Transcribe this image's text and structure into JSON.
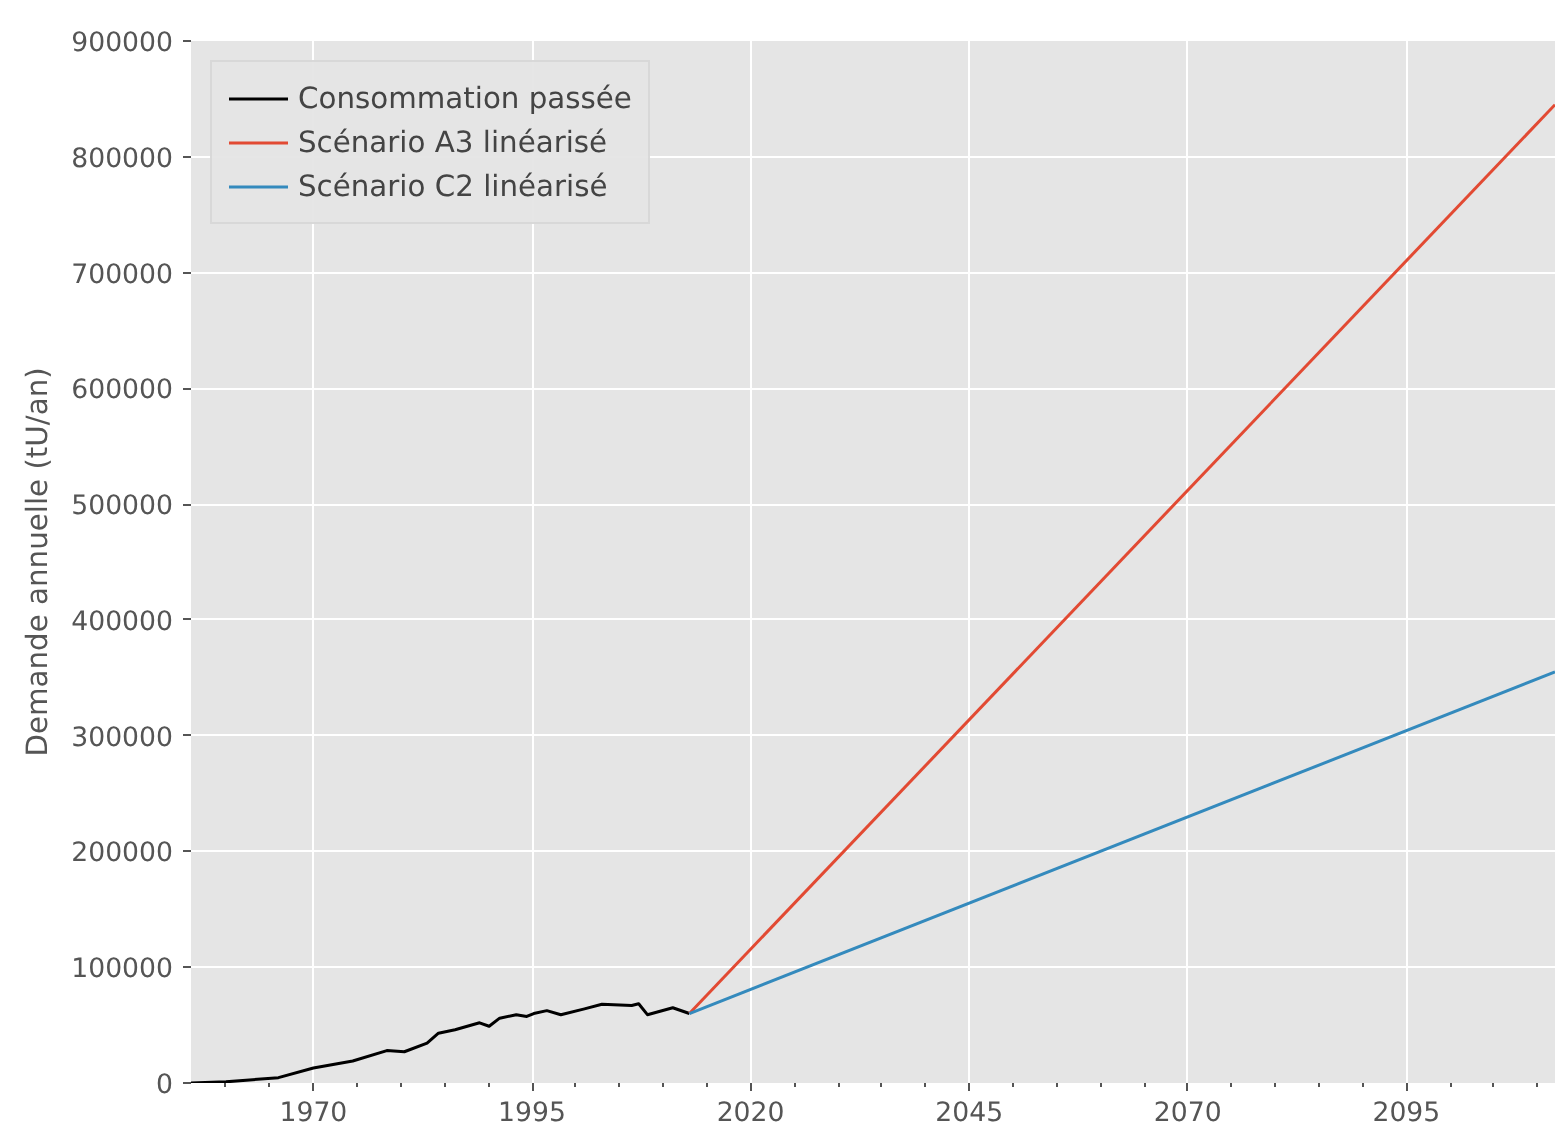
{
  "chart_data": {
    "type": "line",
    "ylabel": "Demande annuelle (tU/an)",
    "xlim": [
      1956,
      2112
    ],
    "ylim": [
      0,
      900000
    ],
    "xticks": [
      1970,
      1995,
      2020,
      2045,
      2070,
      2095
    ],
    "yticks": [
      0,
      100000,
      200000,
      300000,
      400000,
      500000,
      600000,
      700000,
      800000,
      900000
    ],
    "grid": true,
    "legend": "top left",
    "line_style": "solid",
    "marker": "none",
    "series": [
      {
        "name": "Consommation passée",
        "color": "#000000",
        "x": [
          1956,
          1960,
          1966,
          1970,
          1974.5,
          1978.4,
          1980.4,
          1983,
          1984.3,
          1986.2,
          1989,
          1990.1,
          1991.3,
          1993.2,
          1994.4,
          1995.2,
          1996.7,
          1998.3,
          2001,
          2003,
          2006.4,
          2007.2,
          2008.2,
          2011.1,
          2013
        ],
        "values": [
          0,
          1000,
          4600,
          13000,
          19000,
          28000,
          27000,
          34500,
          43000,
          46000,
          52000,
          49000,
          56000,
          59000,
          57500,
          60000,
          62500,
          59000,
          64000,
          68000,
          67000,
          68500,
          59000,
          65000,
          60000
        ]
      },
      {
        "name": "Scénario A3 linéarisé",
        "color": "#e24a33",
        "x": [
          2013,
          2112
        ],
        "values": [
          60000,
          845000
        ]
      },
      {
        "name": "Scénario C2 linéarisé",
        "color": "#348abd",
        "x": [
          2013,
          2112
        ],
        "values": [
          60000,
          355000
        ]
      }
    ]
  }
}
